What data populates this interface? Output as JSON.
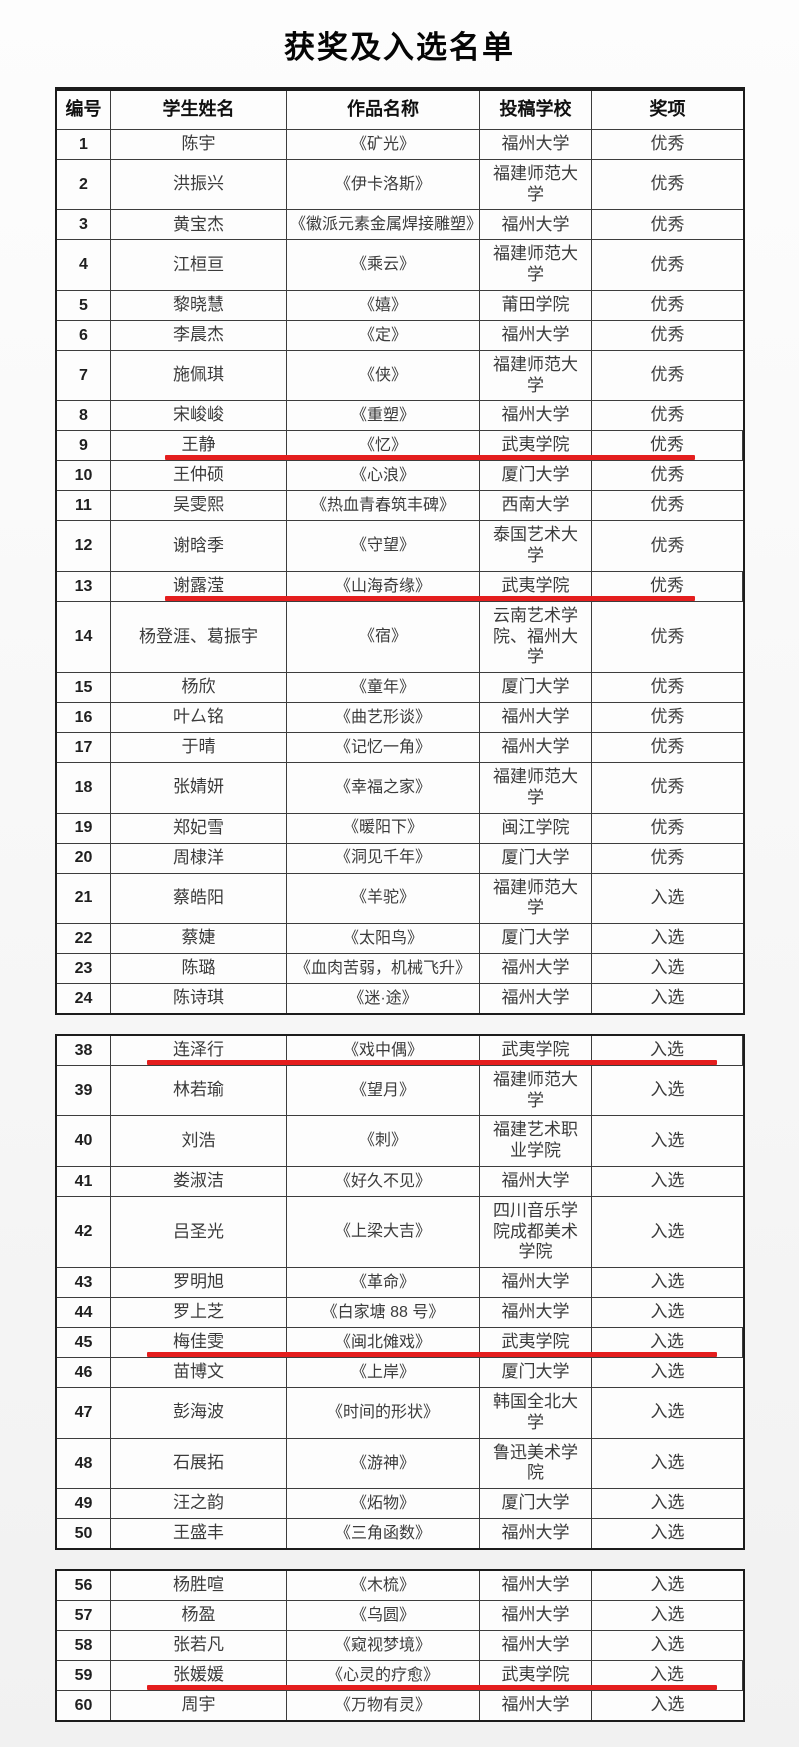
{
  "title": "获奖及入选名单",
  "columns": [
    "编号",
    "学生姓名",
    "作品名称",
    "投稿学校",
    "奖项"
  ],
  "marker_color": "#e41e1e",
  "sections": [
    {
      "has_header": true,
      "rows": [
        {
          "no": "1",
          "name": "陈宇",
          "work": "《矿光》",
          "school": "福州大学",
          "award": "优秀",
          "marked": false
        },
        {
          "no": "2",
          "name": "洪振兴",
          "work": "《伊卡洛斯》",
          "school": "福建师范大学",
          "award": "优秀",
          "marked": false
        },
        {
          "no": "3",
          "name": "黄宝杰",
          "work": "《徽派元素金属焊接雕塑》",
          "school": "福州大学",
          "award": "优秀",
          "marked": false
        },
        {
          "no": "4",
          "name": "江桓亘",
          "work": "《乘云》",
          "school": "福建师范大学",
          "award": "优秀",
          "marked": false
        },
        {
          "no": "5",
          "name": "黎晓慧",
          "work": "《嬉》",
          "school": "莆田学院",
          "award": "优秀",
          "marked": false
        },
        {
          "no": "6",
          "name": "李晨杰",
          "work": "《定》",
          "school": "福州大学",
          "award": "优秀",
          "marked": false
        },
        {
          "no": "7",
          "name": "施佩琪",
          "work": "《侠》",
          "school": "福建师范大学",
          "award": "优秀",
          "marked": false
        },
        {
          "no": "8",
          "name": "宋峻峻",
          "work": "《重塑》",
          "school": "福州大学",
          "award": "优秀",
          "marked": false
        },
        {
          "no": "9",
          "name": "王静",
          "work": "《忆》",
          "school": "武夷学院",
          "award": "优秀",
          "marked": true
        },
        {
          "no": "10",
          "name": "王仲硕",
          "work": "《心浪》",
          "school": "厦门大学",
          "award": "优秀",
          "marked": false
        },
        {
          "no": "11",
          "name": "吴雯熙",
          "work": "《热血青春筑丰碑》",
          "school": "西南大学",
          "award": "优秀",
          "marked": false
        },
        {
          "no": "12",
          "name": "谢晗季",
          "work": "《守望》",
          "school": "泰国艺术大学",
          "award": "优秀",
          "marked": false
        },
        {
          "no": "13",
          "name": "谢露滢",
          "work": "《山海奇缘》",
          "school": "武夷学院",
          "award": "优秀",
          "marked": true
        },
        {
          "no": "14",
          "name": "杨登涯、葛振宇",
          "work": "《宿》",
          "school": "云南艺术学院、福州大学",
          "award": "优秀",
          "marked": false
        },
        {
          "no": "15",
          "name": "杨欣",
          "work": "《童年》",
          "school": "厦门大学",
          "award": "优秀",
          "marked": false
        },
        {
          "no": "16",
          "name": "叶厶铭",
          "work": "《曲艺形谈》",
          "school": "福州大学",
          "award": "优秀",
          "marked": false
        },
        {
          "no": "17",
          "name": "于晴",
          "work": "《记忆一角》",
          "school": "福州大学",
          "award": "优秀",
          "marked": false
        },
        {
          "no": "18",
          "name": "张婧妍",
          "work": "《幸福之家》",
          "school": "福建师范大学",
          "award": "优秀",
          "marked": false
        },
        {
          "no": "19",
          "name": "郑妃雪",
          "work": "《暖阳下》",
          "school": "闽江学院",
          "award": "优秀",
          "marked": false
        },
        {
          "no": "20",
          "name": "周棣洋",
          "work": "《洞见千年》",
          "school": "厦门大学",
          "award": "优秀",
          "marked": false
        },
        {
          "no": "21",
          "name": "蔡皓阳",
          "work": "《羊驼》",
          "school": "福建师范大学",
          "award": "入选",
          "marked": false
        },
        {
          "no": "22",
          "name": "蔡婕",
          "work": "《太阳鸟》",
          "school": "厦门大学",
          "award": "入选",
          "marked": false
        },
        {
          "no": "23",
          "name": "陈璐",
          "work": "《血肉苦弱，机械飞升》",
          "school": "福州大学",
          "award": "入选",
          "marked": false
        },
        {
          "no": "24",
          "name": "陈诗琪",
          "work": "《迷·途》",
          "school": "福州大学",
          "award": "入选",
          "marked": false
        }
      ]
    },
    {
      "has_header": false,
      "rows": [
        {
          "no": "38",
          "name": "连泽行",
          "work": "《戏中偶》",
          "school": "武夷学院",
          "award": "入选",
          "marked": true
        },
        {
          "no": "39",
          "name": "林若瑜",
          "work": "《望月》",
          "school": "福建师范大学",
          "award": "入选",
          "marked": false
        },
        {
          "no": "40",
          "name": "刘浩",
          "work": "《刺》",
          "school": "福建艺术职业学院",
          "award": "入选",
          "marked": false
        },
        {
          "no": "41",
          "name": "娄淑洁",
          "work": "《好久不见》",
          "school": "福州大学",
          "award": "入选",
          "marked": false
        },
        {
          "no": "42",
          "name": "吕圣光",
          "work": "《上梁大吉》",
          "school": "四川音乐学院成都美术学院",
          "award": "入选",
          "marked": false
        },
        {
          "no": "43",
          "name": "罗明旭",
          "work": "《革命》",
          "school": "福州大学",
          "award": "入选",
          "marked": false
        },
        {
          "no": "44",
          "name": "罗上芝",
          "work": "《白家塘 88 号》",
          "school": "福州大学",
          "award": "入选",
          "marked": false
        },
        {
          "no": "45",
          "name": "梅佳雯",
          "work": "《闽北傩戏》",
          "school": "武夷学院",
          "award": "入选",
          "marked": true
        },
        {
          "no": "46",
          "name": "苗博文",
          "work": "《上岸》",
          "school": "厦门大学",
          "award": "入选",
          "marked": false
        },
        {
          "no": "47",
          "name": "彭海波",
          "work": "《时间的形状》",
          "school": "韩国全北大学",
          "award": "入选",
          "marked": false
        },
        {
          "no": "48",
          "name": "石展拓",
          "work": "《游神》",
          "school": "鲁迅美术学院",
          "award": "入选",
          "marked": false
        },
        {
          "no": "49",
          "name": "汪之韵",
          "work": "《炻物》",
          "school": "厦门大学",
          "award": "入选",
          "marked": false
        },
        {
          "no": "50",
          "name": "王盛丰",
          "work": "《三角函数》",
          "school": "福州大学",
          "award": "入选",
          "marked": false
        }
      ]
    },
    {
      "has_header": false,
      "rows": [
        {
          "no": "56",
          "name": "杨胜喧",
          "work": "《木梳》",
          "school": "福州大学",
          "award": "入选",
          "marked": false
        },
        {
          "no": "57",
          "name": "杨盈",
          "work": "《乌圆》",
          "school": "福州大学",
          "award": "入选",
          "marked": false
        },
        {
          "no": "58",
          "name": "张若凡",
          "work": "《窥视梦境》",
          "school": "福州大学",
          "award": "入选",
          "marked": false
        },
        {
          "no": "59",
          "name": "张媛媛",
          "work": "《心灵的疗愈》",
          "school": "武夷学院",
          "award": "入选",
          "marked": true
        },
        {
          "no": "60",
          "name": "周宇",
          "work": "《万物有灵》",
          "school": "福州大学",
          "award": "入选",
          "marked": false
        }
      ]
    }
  ]
}
